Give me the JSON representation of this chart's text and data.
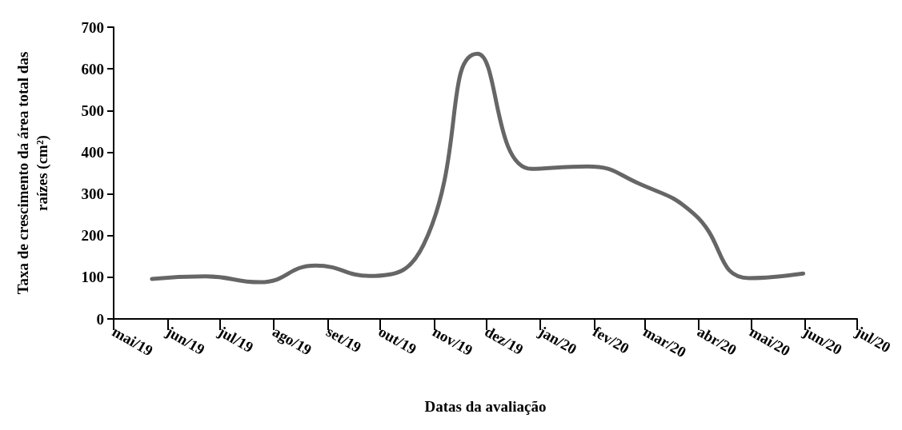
{
  "chart_data": {
    "type": "line",
    "xlabel": "Datas da avaliação",
    "ylabel": "Taxa de crescimento da área total das raízes (cm²)",
    "x": [
      "2019-05-23",
      "2019-06-23",
      "2019-07-24",
      "2019-08-25",
      "2019-09-25",
      "2019-10-26",
      "2019-11-26",
      "2019-12-27",
      "2020-01-28",
      "2020-02-27",
      "2020-03-29",
      "2020-04-30",
      "2020-05-31"
    ],
    "series": [
      {
        "color": "#666666",
        "values": [
          96,
          102,
          88,
          128,
          103,
          178,
          636,
          360,
          366,
          324,
          253,
          98,
          109
        ]
      }
    ],
    "xlim": [
      "2019-05",
      "2020-07"
    ],
    "xticks": [
      {
        "value": "2019-05",
        "label": "mai/19"
      },
      {
        "value": "2019-06",
        "label": "jun/19"
      },
      {
        "value": "2019-07",
        "label": "jul/19"
      },
      {
        "value": "2019-08",
        "label": "ago/19"
      },
      {
        "value": "2019-09",
        "label": "set/19"
      },
      {
        "value": "2019-10",
        "label": "out/19"
      },
      {
        "value": "2019-11",
        "label": "nov/19"
      },
      {
        "value": "2019-12",
        "label": "dez/19"
      },
      {
        "value": "2020-01",
        "label": "jan/20"
      },
      {
        "value": "2020-02",
        "label": "fev/20"
      },
      {
        "value": "2020-03",
        "label": "mar/20"
      },
      {
        "value": "2020-04",
        "label": "abr/20"
      },
      {
        "value": "2020-05",
        "label": "mai/20"
      },
      {
        "value": "2020-06",
        "label": "jun/20"
      },
      {
        "value": "2020-07",
        "label": "jul/20"
      }
    ],
    "ylim": [
      0,
      700
    ],
    "yticks": [
      0,
      100,
      200,
      300,
      400,
      500,
      600,
      700
    ],
    "grid": false,
    "marker": "none",
    "line_style": "solid"
  }
}
